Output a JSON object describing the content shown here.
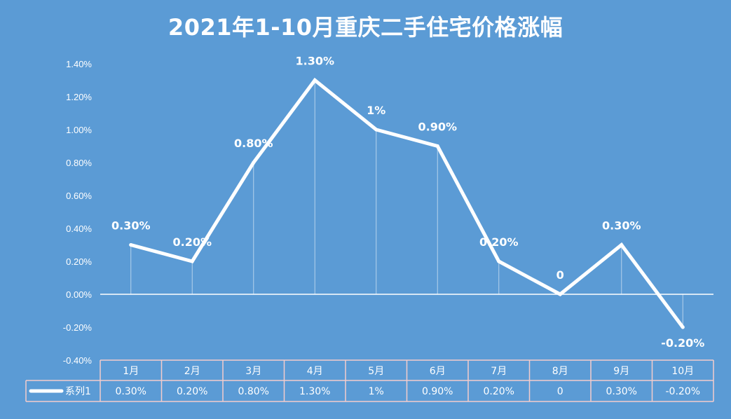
{
  "chart_data": {
    "type": "line",
    "title": "2021年1-10月重庆二手住宅价格涨幅",
    "categories": [
      "1月",
      "2月",
      "3月",
      "4月",
      "5月",
      "6月",
      "7月",
      "8月",
      "9月",
      "10月"
    ],
    "series": [
      {
        "name": "系列1",
        "values": [
          0.3,
          0.2,
          0.8,
          1.3,
          1.0,
          0.9,
          0.2,
          0.0,
          0.3,
          -0.2
        ],
        "labels": [
          "0.30%",
          "0.20%",
          "0.80%",
          "1.30%",
          "1%",
          "0.90%",
          "0.20%",
          "0",
          "0.30%",
          "-0.20%"
        ]
      }
    ],
    "yticks": [
      "1.40%",
      "1.20%",
      "1.00%",
      "0.80%",
      "0.60%",
      "0.40%",
      "0.20%",
      "0.00%",
      "-0.20%",
      "-0.40%"
    ],
    "ylim": [
      -0.4,
      1.4
    ],
    "ystep": 0.2,
    "grid": false,
    "data_table": true,
    "drop_lines": true,
    "legend": "in data table",
    "colors": {
      "background": "#5B9BD5",
      "line": "#FFFFFF",
      "text": "#FFFFFF",
      "table_border": "#F4CCCC"
    }
  }
}
